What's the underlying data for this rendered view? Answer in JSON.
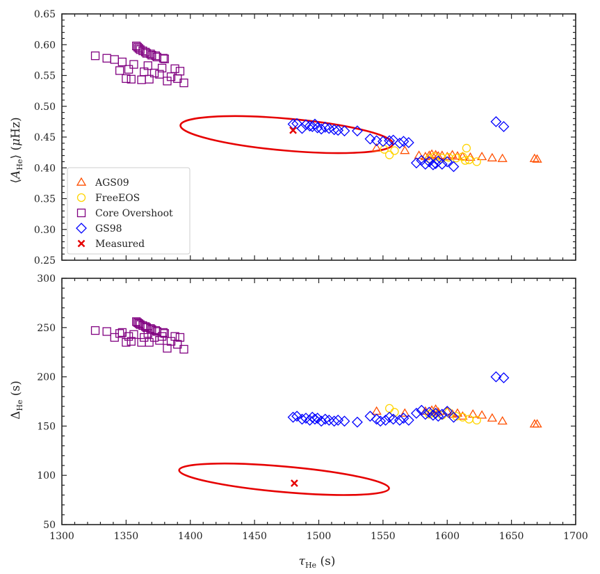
{
  "chart_data": [
    {
      "type": "scatter",
      "panel": "top",
      "ylabel": "⟨A_He⟩ (μHz)",
      "xlabel": "",
      "xlim": [
        1300,
        1700
      ],
      "ylim": [
        0.25,
        0.65
      ],
      "xticks": [
        1300,
        1350,
        1400,
        1450,
        1500,
        1550,
        1600,
        1650,
        1700
      ],
      "yticks": [
        0.25,
        0.3,
        0.35,
        0.4,
        0.45,
        0.5,
        0.55,
        0.6,
        0.65
      ],
      "ytick_labels": [
        "0.25",
        "0.30",
        "0.35",
        "0.40",
        "0.45",
        "0.50",
        "0.55",
        "0.60",
        "0.65"
      ],
      "legend": {
        "placement": "lower-left",
        "entries": [
          {
            "label": "AGS09",
            "marker": "triangle",
            "color": "#ff4f00"
          },
          {
            "label": "FreeEOS",
            "marker": "circle",
            "color": "#ffd400"
          },
          {
            "label": "Core Overshoot",
            "marker": "square",
            "color": "#800080"
          },
          {
            "label": "GS98",
            "marker": "diamond",
            "color": "#0000ff"
          },
          {
            "label": "Measured",
            "marker": "x",
            "color": "#e60000"
          }
        ]
      },
      "series": [
        {
          "name": "AGS09",
          "marker": "triangle",
          "color": "#ff4f00",
          "x": [
            1545,
            1567,
            1578,
            1583,
            1586,
            1588,
            1591,
            1593,
            1596,
            1600,
            1604,
            1608,
            1612,
            1618,
            1627,
            1635,
            1643,
            1668,
            1670
          ],
          "y": [
            0.432,
            0.428,
            0.42,
            0.418,
            0.42,
            0.422,
            0.421,
            0.419,
            0.42,
            0.418,
            0.421,
            0.419,
            0.418,
            0.417,
            0.418,
            0.416,
            0.415,
            0.415,
            0.414
          ]
        },
        {
          "name": "FreeEOS",
          "marker": "circle",
          "color": "#ffd400",
          "x": [
            1551,
            1555,
            1559,
            1586,
            1590,
            1596,
            1601,
            1607,
            1612,
            1614,
            1615,
            1617,
            1623
          ],
          "y": [
            0.43,
            0.421,
            0.428,
            0.415,
            0.418,
            0.416,
            0.417,
            0.416,
            0.418,
            0.412,
            0.432,
            0.413,
            0.41
          ]
        },
        {
          "name": "Core Overshoot",
          "marker": "square",
          "color": "#800080",
          "x": [
            1326,
            1335,
            1341,
            1345,
            1347,
            1350,
            1352,
            1354,
            1356,
            1358,
            1359,
            1360,
            1361,
            1362,
            1363,
            1364,
            1365,
            1366,
            1367,
            1368,
            1369,
            1370,
            1372,
            1373,
            1374,
            1376,
            1378,
            1379,
            1380,
            1382,
            1385,
            1388,
            1390,
            1392,
            1395
          ],
          "y": [
            0.582,
            0.578,
            0.576,
            0.558,
            0.572,
            0.545,
            0.56,
            0.544,
            0.568,
            0.598,
            0.596,
            0.594,
            0.592,
            0.543,
            0.59,
            0.556,
            0.588,
            0.586,
            0.566,
            0.544,
            0.585,
            0.583,
            0.554,
            0.582,
            0.58,
            0.552,
            0.562,
            0.578,
            0.577,
            0.541,
            0.548,
            0.561,
            0.545,
            0.557,
            0.538
          ]
        },
        {
          "name": "GS98",
          "marker": "diamond",
          "color": "#0000ff",
          "x": [
            1480,
            1483,
            1487,
            1490,
            1493,
            1495,
            1497,
            1499,
            1502,
            1505,
            1508,
            1512,
            1515,
            1520,
            1530,
            1540,
            1545,
            1550,
            1555,
            1558,
            1563,
            1566,
            1570,
            1576,
            1580,
            1583,
            1586,
            1589,
            1591,
            1593,
            1596,
            1600,
            1605,
            1638,
            1644
          ],
          "y": [
            0.471,
            0.472,
            0.464,
            0.47,
            0.468,
            0.467,
            0.471,
            0.465,
            0.463,
            0.466,
            0.464,
            0.462,
            0.461,
            0.46,
            0.46,
            0.447,
            0.444,
            0.443,
            0.444,
            0.445,
            0.44,
            0.443,
            0.441,
            0.408,
            0.412,
            0.406,
            0.41,
            0.405,
            0.407,
            0.411,
            0.406,
            0.41,
            0.402,
            0.475,
            0.467
          ]
        },
        {
          "name": "Measured",
          "marker": "x",
          "color": "#e60000",
          "x": [
            1480
          ],
          "y": [
            0.461
          ]
        }
      ],
      "annotations": [
        {
          "type": "ellipse",
          "center": [
            1475,
            0.454
          ],
          "half_width_x": 83,
          "half_height_y": 0.026,
          "color": "#e60000"
        }
      ]
    },
    {
      "type": "scatter",
      "panel": "bottom",
      "ylabel": "Δ_He (s)",
      "xlabel": "τ_He (s)",
      "xlim": [
        1300,
        1700
      ],
      "ylim": [
        50,
        300
      ],
      "xticks": [
        1300,
        1350,
        1400,
        1450,
        1500,
        1550,
        1600,
        1650,
        1700
      ],
      "xtick_labels": [
        "1300",
        "1350",
        "1400",
        "1450",
        "1500",
        "1550",
        "1600",
        "1650",
        "1700"
      ],
      "yticks": [
        50,
        100,
        150,
        200,
        250,
        300
      ],
      "ytick_labels": [
        "50",
        "100",
        "150",
        "200",
        "250",
        "300"
      ],
      "series": [
        {
          "name": "AGS09",
          "marker": "triangle",
          "color": "#ff4f00",
          "x": [
            1545,
            1567,
            1583,
            1588,
            1591,
            1593,
            1600,
            1604,
            1608,
            1612,
            1620,
            1627,
            1635,
            1643,
            1668,
            1670
          ],
          "y": [
            165,
            163,
            165,
            166,
            167,
            164,
            165,
            162,
            163,
            160,
            162,
            161,
            158,
            155,
            152,
            152
          ]
        },
        {
          "name": "FreeEOS",
          "marker": "circle",
          "color": "#ffd400",
          "x": [
            1555,
            1559,
            1586,
            1590,
            1596,
            1601,
            1607,
            1612,
            1617,
            1623
          ],
          "y": [
            168,
            164,
            162,
            163,
            161,
            164,
            160,
            159,
            157,
            156
          ]
        },
        {
          "name": "Core Overshoot",
          "marker": "square",
          "color": "#800080",
          "x": [
            1326,
            1335,
            1341,
            1345,
            1347,
            1350,
            1352,
            1354,
            1356,
            1358,
            1359,
            1360,
            1361,
            1362,
            1363,
            1364,
            1365,
            1366,
            1367,
            1368,
            1369,
            1370,
            1372,
            1373,
            1374,
            1376,
            1378,
            1379,
            1380,
            1382,
            1385,
            1388,
            1390,
            1392,
            1395
          ],
          "y": [
            247,
            246,
            240,
            244,
            245,
            235,
            241,
            236,
            243,
            256,
            255,
            254,
            253,
            235,
            252,
            240,
            251,
            250,
            244,
            235,
            249,
            248,
            240,
            247,
            246,
            237,
            241,
            245,
            244,
            229,
            236,
            241,
            233,
            240,
            228
          ]
        },
        {
          "name": "GS98",
          "marker": "diamond",
          "color": "#0000ff",
          "x": [
            1480,
            1483,
            1487,
            1490,
            1493,
            1495,
            1497,
            1499,
            1502,
            1505,
            1508,
            1512,
            1515,
            1520,
            1530,
            1540,
            1545,
            1548,
            1552,
            1555,
            1558,
            1563,
            1566,
            1570,
            1576,
            1580,
            1583,
            1586,
            1589,
            1591,
            1593,
            1596,
            1600,
            1605,
            1638,
            1644
          ],
          "y": [
            159,
            160,
            157,
            158,
            156,
            159,
            157,
            158,
            155,
            157,
            156,
            155,
            156,
            155,
            154,
            160,
            157,
            155,
            156,
            159,
            157,
            156,
            158,
            156,
            163,
            166,
            162,
            164,
            161,
            163,
            160,
            162,
            165,
            159,
            200,
            199
          ]
        },
        {
          "name": "Measured",
          "marker": "x",
          "color": "#e60000",
          "x": [
            1481
          ],
          "y": [
            92
          ]
        }
      ],
      "annotations": [
        {
          "type": "ellipse",
          "center": [
            1473,
            96
          ],
          "half_width_x": 82,
          "half_height_y": 13,
          "color": "#e60000"
        }
      ]
    }
  ]
}
